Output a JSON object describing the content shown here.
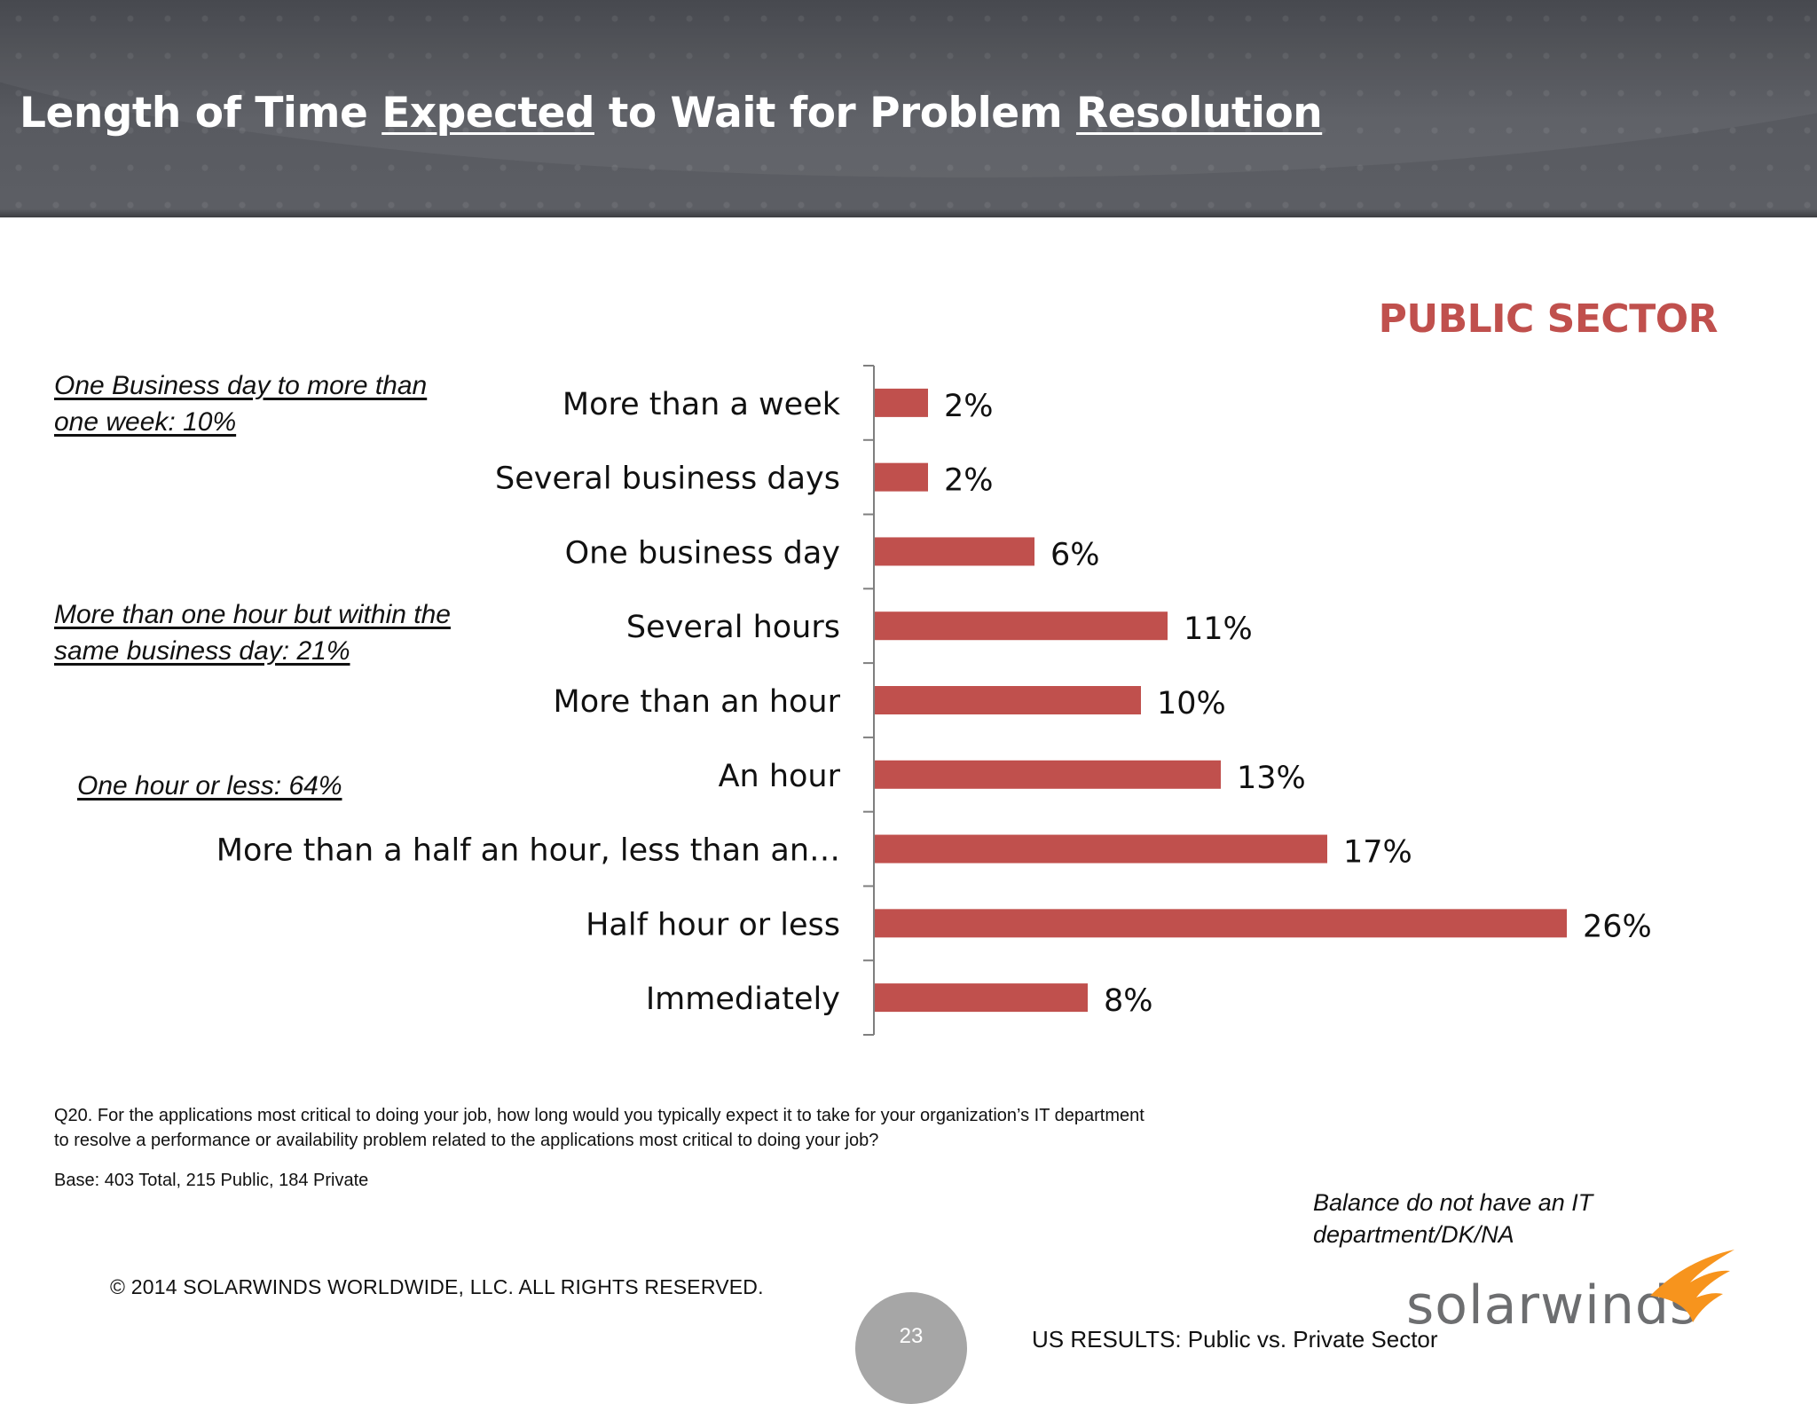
{
  "header": {
    "title_part1": "Length of Time ",
    "title_underlined1": "Expected",
    "title_part2": " to Wait for Problem ",
    "title_underlined2": "Resolution"
  },
  "sector_label": "PUBLIC SECTOR",
  "group_notes": [
    "One Business day to more than one week:  10%",
    "More than one hour but within the same business day:  21%",
    "One hour or less:  64%"
  ],
  "chart_data": {
    "type": "bar",
    "orientation": "horizontal",
    "categories": [
      "More than a week",
      "Several business days",
      "One business day",
      "Several hours",
      "More than an hour",
      "An hour",
      "More than a half an hour, less than an…",
      "Half hour or less",
      "Immediately"
    ],
    "values": [
      2,
      2,
      6,
      11,
      10,
      13,
      17,
      26,
      8
    ],
    "value_labels": [
      "2%",
      "2%",
      "6%",
      "11%",
      "10%",
      "13%",
      "17%",
      "26%",
      "8%"
    ],
    "unit": "%",
    "bar_color": "#c0504d",
    "grid": false,
    "legend": "none"
  },
  "question_text": "Q20. For the applications most critical to doing your job, how long would you typically expect it to take for your organization’s IT department to resolve a performance or availability problem related to the applications most critical to doing your job?",
  "base_text": "Base:  403  Total, 215 Public, 184 Private",
  "balance_note": "Balance do not have an IT department/DK/NA",
  "copyright": "© 2014 SOLARWINDS WORLDWIDE, LLC.  ALL RIGHTS RESERVED.",
  "page_number": "23",
  "footer_text": "US RESULTS:  Public vs. Private Sector",
  "logo_text": "solarwinds",
  "logo_icon": "flame-icon",
  "colors": {
    "header_bg": "#585a60",
    "accent": "#c0504d",
    "logo_orange": "#f7941d"
  }
}
